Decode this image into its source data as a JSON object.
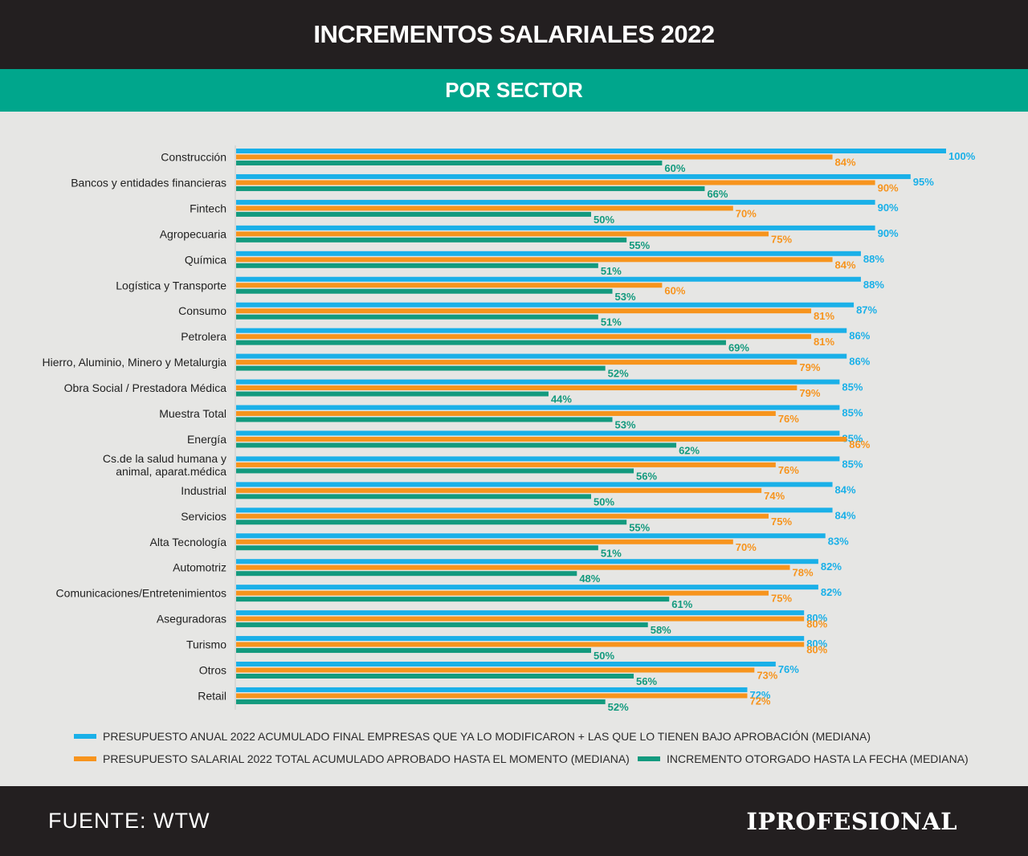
{
  "header": {
    "title": "INCREMENTOS SALARIALES 2022",
    "subtitle": "POR SECTOR"
  },
  "footer": {
    "source": "FUENTE: WTW",
    "brand": "IPROFESIONAL"
  },
  "legend": {
    "s1": "PRESUPUESTO ANUAL 2022 ACUMULADO FINAL EMPRESAS QUE YA LO MODIFICARON + LAS QUE LO TIENEN BAJO APROBACIÓN (MEDIANA)",
    "s2": "PRESUPUESTO SALARIAL 2022 TOTAL ACUMULADO APROBADO HASTA EL MOMENTO (MEDIANA)",
    "s3": "INCREMENTO OTORGADO HASTA LA FECHA (MEDIANA)"
  },
  "chart_data": {
    "type": "bar",
    "orientation": "horizontal",
    "title": "INCREMENTOS SALARIALES 2022",
    "subtitle": "POR SECTOR",
    "value_suffix": "%",
    "xlim": [
      0,
      100
    ],
    "grid": false,
    "legend_position": "bottom",
    "categories": [
      "Construcción",
      "Bancos y entidades financieras",
      "Fintech",
      "Agropecuaria",
      "Química",
      "Logística y Transporte",
      "Consumo",
      "Petrolera",
      "Hierro, Aluminio, Minero y Metalurgia",
      "Obra Social / Prestadora Médica",
      "Muestra Total",
      "Energía",
      [
        "Cs.de la salud humana y",
        "animal, aparat.médica"
      ],
      "Industrial",
      "Servicios",
      "Alta Tecnología",
      "Automotriz",
      "Comunicaciones/Entretenimientos",
      "Aseguradoras",
      "Turismo",
      "Otros",
      "Retail"
    ],
    "series": [
      {
        "name": "PRESUPUESTO ANUAL 2022 ACUMULADO FINAL EMPRESAS QUE YA LO MODIFICARON + LAS QUE LO TIENEN BAJO APROBACIÓN (MEDIANA)",
        "color": "#1ab0e8",
        "values": [
          100,
          95,
          90,
          90,
          88,
          88,
          87,
          86,
          86,
          85,
          85,
          85,
          85,
          84,
          84,
          83,
          82,
          82,
          80,
          80,
          76,
          72
        ]
      },
      {
        "name": "PRESUPUESTO SALARIAL 2022 TOTAL ACUMULADO APROBADO HASTA EL MOMENTO (MEDIANA)",
        "color": "#f7941d",
        "values": [
          84,
          90,
          70,
          75,
          84,
          60,
          81,
          81,
          79,
          79,
          76,
          86,
          76,
          74,
          75,
          70,
          78,
          75,
          80,
          80,
          73,
          72
        ]
      },
      {
        "name": "INCREMENTO OTORGADO HASTA LA FECHA (MEDIANA)",
        "color": "#139a7e",
        "values": [
          60,
          66,
          50,
          55,
          51,
          53,
          51,
          69,
          52,
          44,
          53,
          62,
          56,
          50,
          55,
          51,
          48,
          61,
          58,
          50,
          56,
          52
        ]
      }
    ]
  }
}
